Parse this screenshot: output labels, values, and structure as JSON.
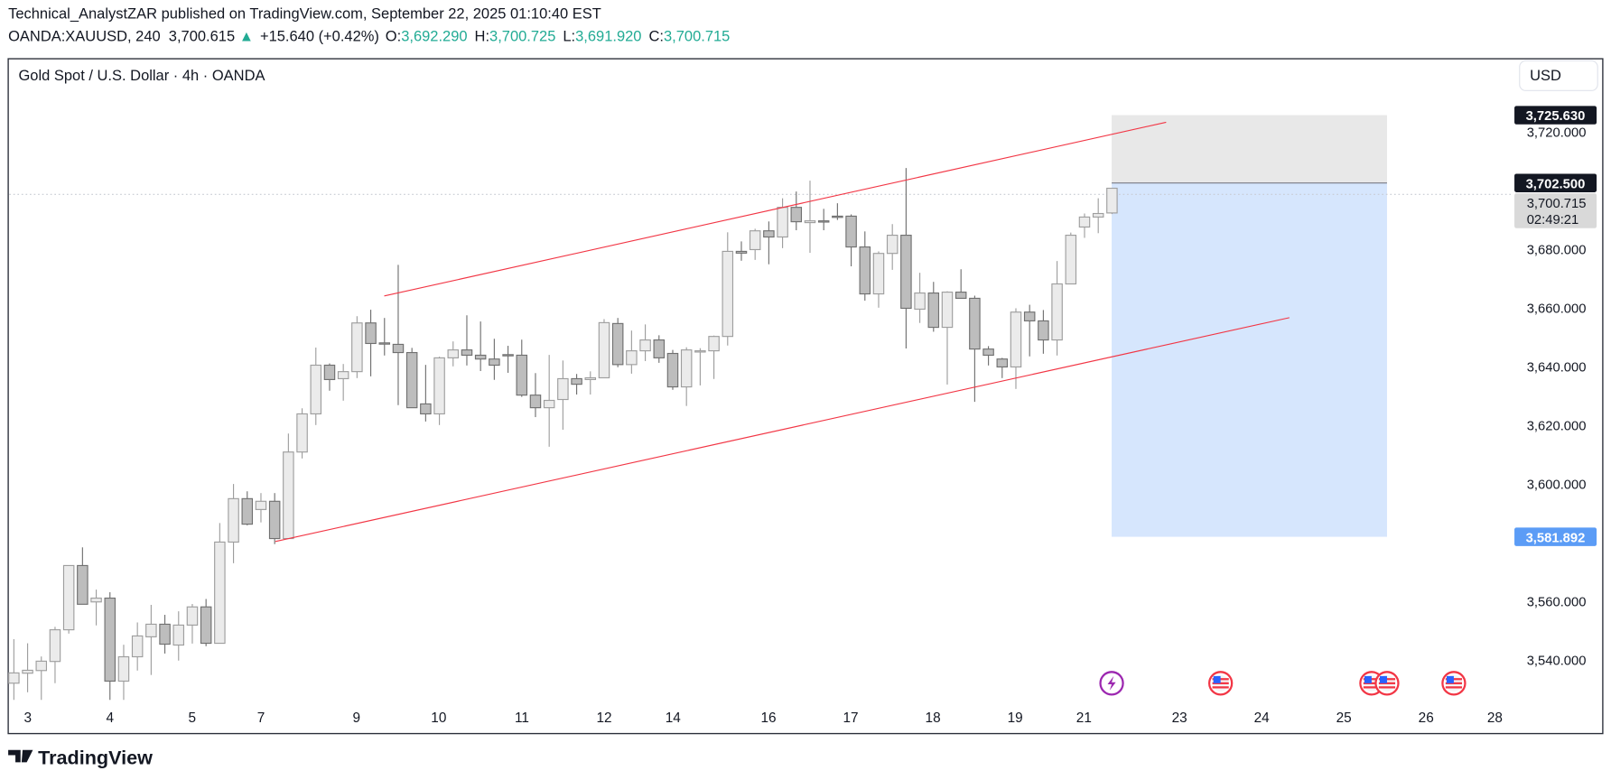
{
  "header": {
    "published_line": "Technical_AnalystZAR published on TradingView.com, September 22, 2025 01:10:40 EST",
    "symbol": "OANDA:XAUUSD, 240",
    "last_price": "3,700.615",
    "change": "+15.640 (+0.42%)",
    "o_label": "O:",
    "o_value": "3,692.290",
    "h_label": "H:",
    "h_value": "3,700.725",
    "l_label": "L:",
    "l_value": "3,691.920",
    "c_label": "C:",
    "c_value": "3,700.715",
    "up_icon": "triangle-up-icon"
  },
  "chart": {
    "title": "Gold Spot / U.S. Dollar · 4h · OANDA",
    "currency_button": "USD",
    "labels": {
      "target_price": "3,725.630",
      "entry_price": "3,702.500",
      "current_price": "3,700.715",
      "countdown": "02:49:21",
      "stop_price": "3,581.892"
    },
    "colors": {
      "up_fill": "#ebebeb",
      "up_border": "#9e9e9e",
      "down_fill": "#bdbdbd",
      "down_border": "#707070",
      "channel_line": "#f23645",
      "target_zone": "#e8e8e8",
      "stop_zone": "#d6e6fd",
      "stop_label": "#5b9cf6",
      "header_values": "#22ab94"
    },
    "events": [
      {
        "icon": "lightning-icon",
        "color": "#9c27b0"
      },
      {
        "icon": "us-flag-icon"
      },
      {
        "icon": "us-flag-icon"
      },
      {
        "icon": "us-flag-icon"
      },
      {
        "icon": "us-flag-icon"
      }
    ]
  },
  "footer": {
    "logo": "TradingView"
  },
  "chart_data": {
    "type": "candlestick",
    "title": "Gold Spot / U.S. Dollar · 4h · OANDA",
    "interval": "4h",
    "y_ticks": [
      {
        "value": 3720,
        "label": "3,720.000"
      },
      {
        "value": 3680,
        "label": "3,680.000"
      },
      {
        "value": 3660,
        "label": "3,660.000"
      },
      {
        "value": 3640,
        "label": "3,640.000"
      },
      {
        "value": 3620,
        "label": "3,620.000"
      },
      {
        "value": 3600,
        "label": "3,600.000"
      },
      {
        "value": 3560,
        "label": "3,560.000"
      },
      {
        "value": 3540,
        "label": "3,540.000"
      }
    ],
    "x_ticks": [
      {
        "label": "3"
      },
      {
        "label": "4"
      },
      {
        "label": "5"
      },
      {
        "label": "7"
      },
      {
        "label": "9"
      },
      {
        "label": "10"
      },
      {
        "label": "11"
      },
      {
        "label": "12"
      },
      {
        "label": "14"
      },
      {
        "label": "16"
      },
      {
        "label": "17"
      },
      {
        "label": "18"
      },
      {
        "label": "19"
      },
      {
        "label": "21"
      },
      {
        "label": "23"
      },
      {
        "label": "24"
      },
      {
        "label": "25"
      },
      {
        "label": "26"
      },
      {
        "label": "28"
      }
    ],
    "grid": false,
    "ohlc": [
      [
        3532.0,
        3547.0,
        3526.3,
        3535.5
      ],
      [
        3535.4,
        3545.6,
        3528.9,
        3536.4
      ],
      [
        3536.3,
        3541.1,
        3526.3,
        3539.5
      ],
      [
        3539.4,
        3551.2,
        3532.0,
        3550.2
      ],
      [
        3550.2,
        3572.1,
        3548.9,
        3572.1
      ],
      [
        3572.1,
        3578.3,
        3558.9,
        3558.9
      ],
      [
        3559.7,
        3563.9,
        3551.7,
        3561.0
      ],
      [
        3561.0,
        3563.0,
        3526.3,
        3532.7
      ],
      [
        3532.7,
        3545.1,
        3526.3,
        3541.0
      ],
      [
        3541.0,
        3552.7,
        3536.3,
        3548.1
      ],
      [
        3547.8,
        3558.7,
        3534.8,
        3552.1
      ],
      [
        3552.1,
        3555.3,
        3542.1,
        3545.3
      ],
      [
        3545.0,
        3556.5,
        3539.7,
        3551.8
      ],
      [
        3551.8,
        3559.0,
        3545.5,
        3558.0
      ],
      [
        3558.0,
        3560.7,
        3544.6,
        3545.6
      ],
      [
        3545.6,
        3586.6,
        3545.6,
        3580.1
      ],
      [
        3580.1,
        3599.9,
        3572.9,
        3594.9
      ],
      [
        3594.9,
        3597.4,
        3585.8,
        3586.2
      ],
      [
        3591.2,
        3596.8,
        3586.8,
        3594.0
      ],
      [
        3594.0,
        3596.8,
        3579.4,
        3581.3
      ],
      [
        3581.3,
        3617.1,
        3581.3,
        3610.8
      ],
      [
        3610.8,
        3625.7,
        3608.6,
        3623.8
      ],
      [
        3623.8,
        3646.4,
        3620.0,
        3640.4
      ],
      [
        3640.4,
        3641.0,
        3631.7,
        3635.5
      ],
      [
        3635.8,
        3640.8,
        3628.3,
        3638.2
      ],
      [
        3638.2,
        3657.1,
        3636.0,
        3654.8
      ],
      [
        3654.8,
        3659.3,
        3636.6,
        3647.8
      ],
      [
        3648.0,
        3656.5,
        3643.7,
        3647.6
      ],
      [
        3647.5,
        3674.6,
        3626.8,
        3644.7
      ],
      [
        3644.7,
        3646.3,
        3625.9,
        3625.9
      ],
      [
        3627.2,
        3640.5,
        3621.2,
        3623.8
      ],
      [
        3623.8,
        3643.3,
        3620.0,
        3642.9
      ],
      [
        3642.9,
        3648.5,
        3640.0,
        3645.6
      ],
      [
        3645.6,
        3657.4,
        3640.3,
        3643.8
      ],
      [
        3643.8,
        3655.3,
        3638.4,
        3642.5
      ],
      [
        3642.5,
        3649.4,
        3635.4,
        3640.4
      ],
      [
        3644.0,
        3647.0,
        3637.8,
        3643.8
      ],
      [
        3643.8,
        3649.1,
        3629.6,
        3630.2
      ],
      [
        3630.2,
        3637.7,
        3622.7,
        3625.9
      ],
      [
        3625.9,
        3643.9,
        3612.6,
        3628.4
      ],
      [
        3628.7,
        3642.0,
        3618.4,
        3635.8
      ],
      [
        3635.8,
        3637.4,
        3630.4,
        3633.9
      ],
      [
        3635.5,
        3638.3,
        3630.4,
        3636.1
      ],
      [
        3636.1,
        3656.1,
        3636.1,
        3654.9
      ],
      [
        3654.6,
        3656.5,
        3639.7,
        3640.6
      ],
      [
        3640.6,
        3652.2,
        3637.5,
        3645.3
      ],
      [
        3645.3,
        3654.3,
        3641.8,
        3649.0
      ],
      [
        3649.0,
        3650.6,
        3641.2,
        3642.9
      ],
      [
        3644.4,
        3645.6,
        3632.0,
        3633.0
      ],
      [
        3633.0,
        3646.5,
        3626.5,
        3645.6
      ],
      [
        3645.3,
        3646.2,
        3633.5,
        3645.3
      ],
      [
        3645.3,
        3650.5,
        3635.7,
        3650.2
      ],
      [
        3650.2,
        3685.7,
        3647.1,
        3679.2
      ],
      [
        3679.2,
        3682.6,
        3676.0,
        3678.6
      ],
      [
        3679.8,
        3686.9,
        3676.3,
        3686.2
      ],
      [
        3686.2,
        3689.4,
        3674.8,
        3684.1
      ],
      [
        3684.1,
        3697.3,
        3680.3,
        3694.2
      ],
      [
        3694.2,
        3699.6,
        3686.4,
        3689.3
      ],
      [
        3689.0,
        3703.3,
        3678.7,
        3689.6
      ],
      [
        3689.6,
        3693.7,
        3686.4,
        3689.5
      ],
      [
        3691.2,
        3695.6,
        3689.9,
        3691.1
      ],
      [
        3691.2,
        3691.8,
        3674.1,
        3680.7
      ],
      [
        3680.7,
        3686.0,
        3662.4,
        3664.7
      ],
      [
        3664.7,
        3679.2,
        3660.0,
        3678.5
      ],
      [
        3678.5,
        3688.5,
        3672.9,
        3684.7
      ],
      [
        3684.7,
        3707.6,
        3646.1,
        3659.8
      ],
      [
        3659.5,
        3671.9,
        3654.8,
        3665.0
      ],
      [
        3665.0,
        3668.8,
        3651.8,
        3653.3
      ],
      [
        3653.3,
        3665.6,
        3633.8,
        3665.3
      ],
      [
        3665.3,
        3673.1,
        3663.2,
        3663.2
      ],
      [
        3663.2,
        3664.1,
        3627.9,
        3645.9
      ],
      [
        3645.9,
        3646.9,
        3640.3,
        3643.8
      ],
      [
        3642.5,
        3642.9,
        3636.0,
        3639.8
      ],
      [
        3639.8,
        3659.8,
        3632.3,
        3658.5
      ],
      [
        3658.5,
        3661.0,
        3643.4,
        3655.5
      ],
      [
        3655.5,
        3659.2,
        3644.3,
        3649.0
      ],
      [
        3649.0,
        3675.9,
        3643.7,
        3668.1
      ],
      [
        3668.1,
        3685.6,
        3668.1,
        3684.7
      ],
      [
        3687.5,
        3692.1,
        3683.8,
        3690.9
      ],
      [
        3690.9,
        3697.3,
        3685.4,
        3692.1
      ],
      [
        3692.29,
        3700.725,
        3691.92,
        3700.715
      ]
    ],
    "channel": {
      "upper": [
        [
          3664.0
        ],
        [
          3723.2
        ]
      ],
      "lower": [
        [
          3580.3
        ],
        [
          3656.6
        ]
      ]
    },
    "position": {
      "target": 3725.63,
      "entry": 3702.5,
      "stop": 3581.892,
      "current": 3700.715
    }
  }
}
